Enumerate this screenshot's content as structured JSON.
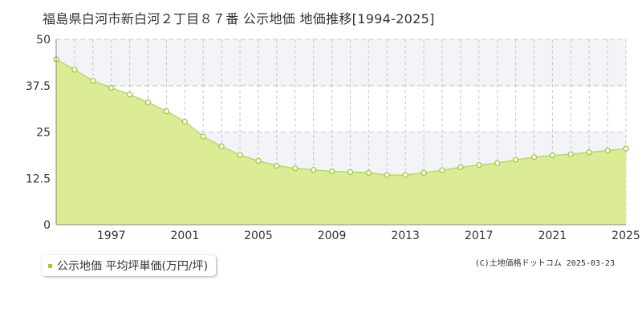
{
  "chart_data": {
    "type": "area",
    "title": "福島県白河市新白河２丁目８７番 公示地価 地価推移[1994-2025]",
    "x": [
      1994,
      1995,
      1996,
      1997,
      1998,
      1999,
      2000,
      2001,
      2002,
      2003,
      2004,
      2005,
      2006,
      2007,
      2008,
      2009,
      2010,
      2011,
      2012,
      2013,
      2014,
      2015,
      2016,
      2017,
      2018,
      2019,
      2020,
      2021,
      2022,
      2023,
      2024,
      2025
    ],
    "series": [
      {
        "name": "公示地価 平均坪単価(万円/坪)",
        "values": [
          44.6,
          41.8,
          38.8,
          36.9,
          35.1,
          33.0,
          30.6,
          27.8,
          23.8,
          21.1,
          18.8,
          17.2,
          15.9,
          15.2,
          14.8,
          14.4,
          14.2,
          14.0,
          13.4,
          13.4,
          14.0,
          14.7,
          15.5,
          16.1,
          16.6,
          17.5,
          18.2,
          18.7,
          19.0,
          19.5,
          20.0,
          20.5
        ]
      }
    ],
    "xticks": [
      "1997",
      "2001",
      "2005",
      "2009",
      "2013",
      "2017",
      "2021",
      "2025"
    ],
    "xtick_values": [
      1997,
      2001,
      2005,
      2009,
      2013,
      2017,
      2021,
      2025
    ],
    "yticks": [
      "0",
      "12.5",
      "25",
      "37.5",
      "50"
    ],
    "ytick_values": [
      0,
      12.5,
      25,
      37.5,
      50
    ],
    "xlim": [
      1994,
      2025
    ],
    "ylim": [
      0,
      50
    ],
    "legend_position": "bottom-left",
    "grid": true,
    "colors": {
      "fill": "#dbec95",
      "line": "#b7d86b",
      "marker": "#9acd32",
      "band": "#f4f4f8"
    }
  },
  "legend": {
    "label": "公示地価 平均坪単価(万円/坪)"
  },
  "copyright": "(C)土地価格ドットコム 2025-03-23"
}
